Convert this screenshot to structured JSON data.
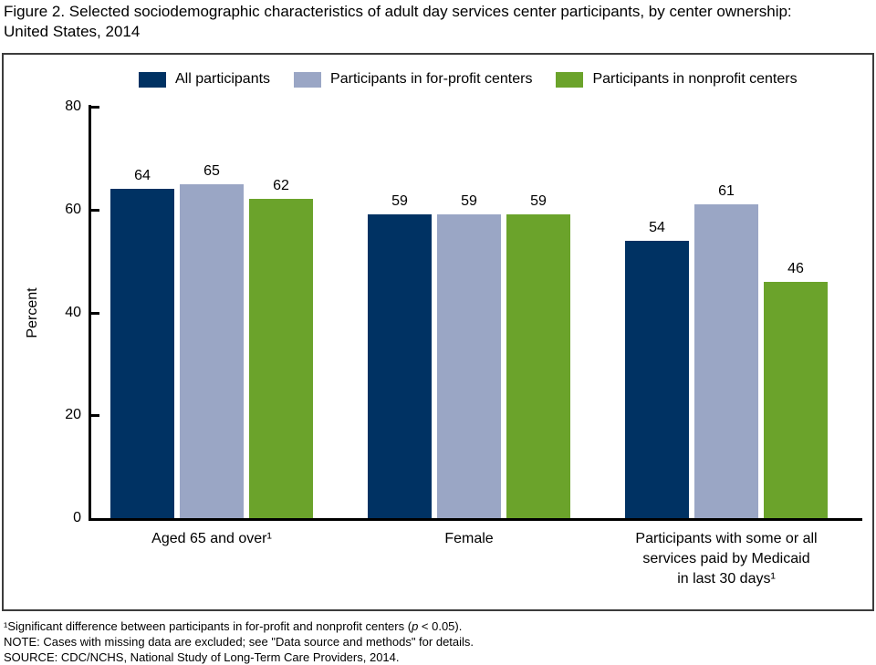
{
  "title": {
    "line1": "Figure 2. Selected sociodemographic characteristics of adult day services center participants, by center ownership:",
    "line2": "United States, 2014"
  },
  "colors": {
    "navy": "#003263",
    "periwinkle": "#9aa6c5",
    "green": "#6ba32b",
    "axis": "#000000",
    "frame": "#3c3c3c"
  },
  "chart_data": {
    "type": "bar",
    "title": "Figure 2. Selected sociodemographic characteristics of adult day services center participants, by center ownership: United States, 2014",
    "ylabel": "Percent",
    "xlabel": "",
    "ylim": [
      0,
      80
    ],
    "yticks": [
      0,
      20,
      40,
      60,
      80
    ],
    "grid": false,
    "legend_position": "top",
    "bar_value_labels": true,
    "categories": [
      "Aged 65 and over¹",
      "Female",
      "Participants with some or all\nservices paid by Medicaid\nin last 30 days¹"
    ],
    "series": [
      {
        "name": "All participants",
        "color": "#003263",
        "values": [
          64,
          59,
          54
        ]
      },
      {
        "name": "Participants in for-profit centers",
        "color": "#9aa6c5",
        "values": [
          65,
          59,
          61
        ]
      },
      {
        "name": "Participants in nonprofit centers",
        "color": "#6ba32b",
        "values": [
          62,
          59,
          46
        ]
      }
    ]
  },
  "footnotes": {
    "sig_pre": "¹Significant difference between participants in for-profit and nonprofit centers (",
    "sig_italic": "p",
    "sig_post": " < 0.05).",
    "note": "NOTE: Cases with missing data are excluded; see \"Data source and methods\" for details.",
    "source": "SOURCE: CDC/NCHS, National Study of Long-Term Care Providers, 2014."
  }
}
